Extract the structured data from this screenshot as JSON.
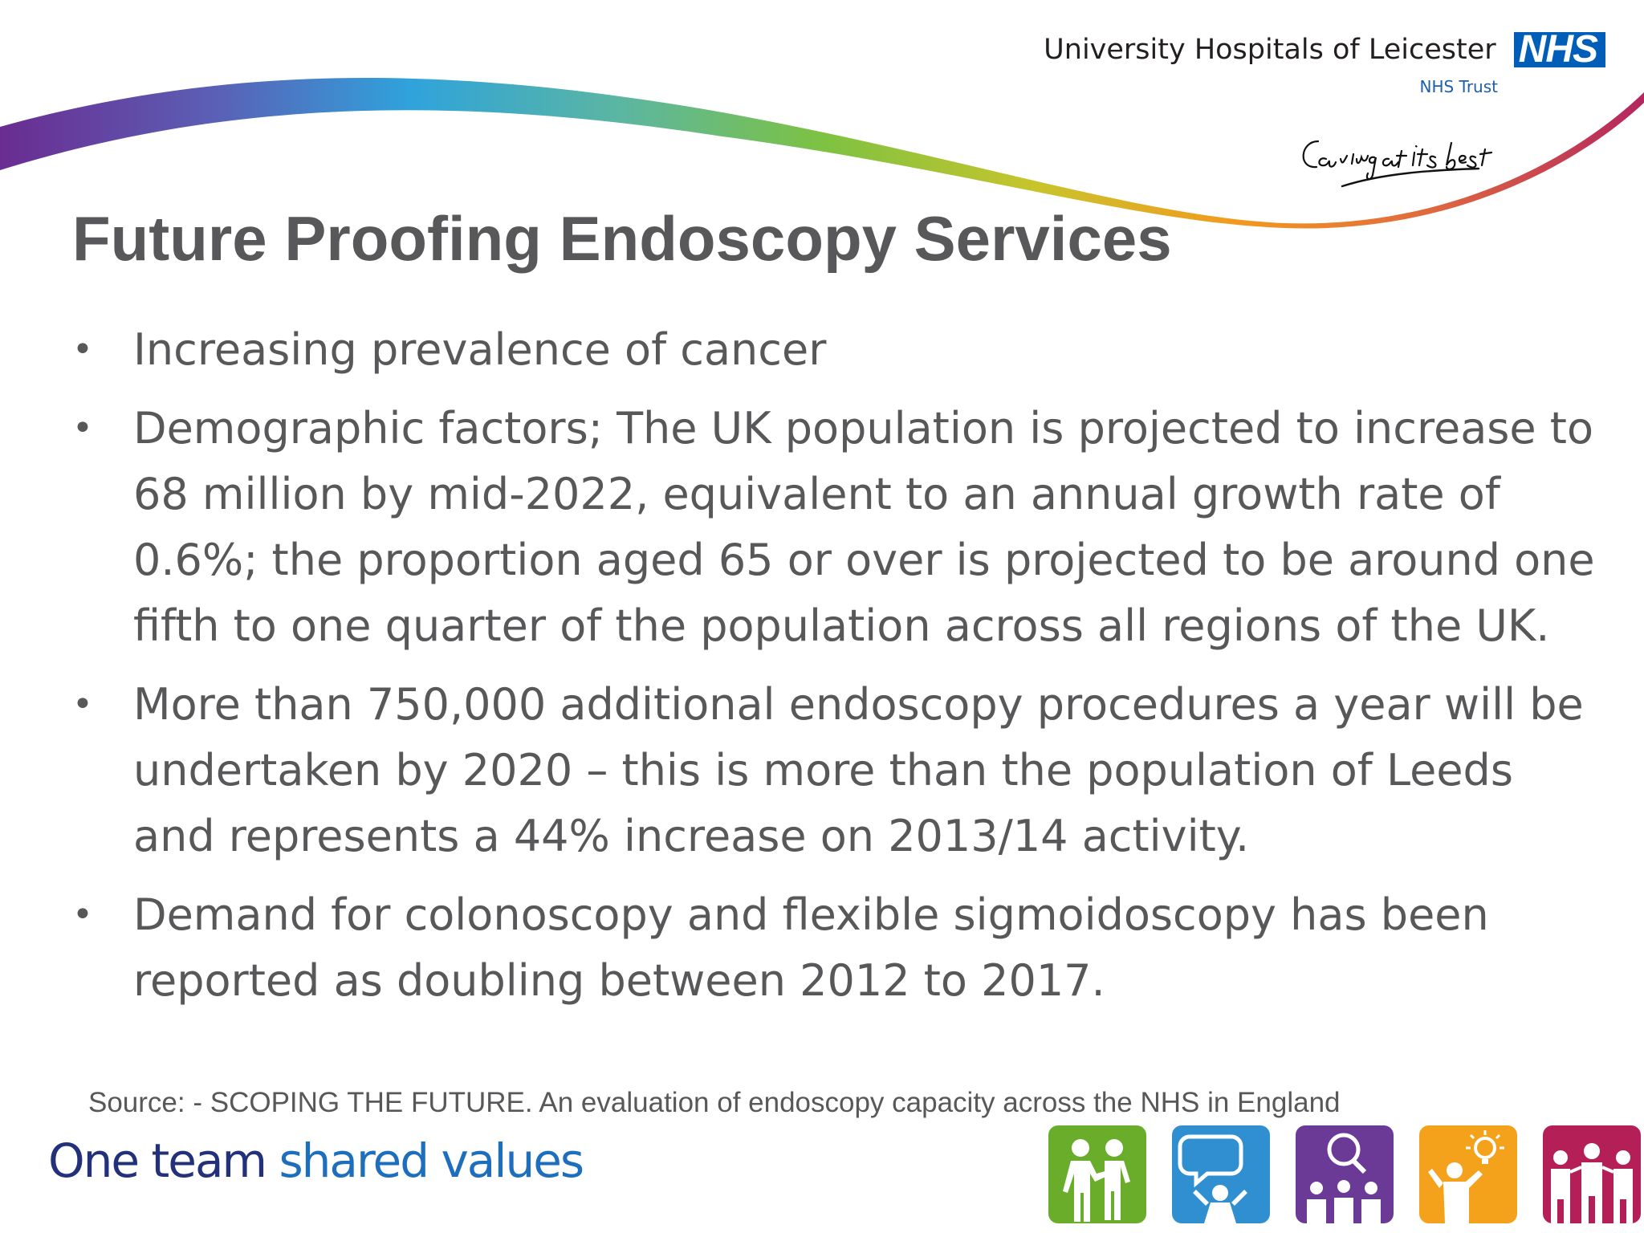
{
  "header": {
    "org_name": "University Hospitals of Leicester",
    "nhs_logo": "NHS",
    "trust": "NHS Trust",
    "slogan": "Caring at its best"
  },
  "slide": {
    "title": "Future Proofing Endoscopy Services",
    "bullets": [
      "Increasing prevalence of cancer",
      "Demographic factors; The UK population is projected to increase to 68 million by mid-2022, equivalent to an annual growth rate of 0.6%; the proportion aged 65 or over is projected to be around one fifth to one quarter of the population across all regions of the UK.",
      "More than 750,000 additional endoscopy procedures a year will be undertaken by 2020 – this is more than the population of Leeds and represents a 44% increase on 2013/14 activity.",
      "Demand for colonoscopy and flexible sigmoidoscopy has been reported as doubling between 2012 to 2017."
    ],
    "source": "Source: - SCOPING THE FUTURE.  An evaluation of endoscopy capacity across the NHS in England"
  },
  "footer": {
    "tagline_part1": "One team",
    "tagline_part2": "shared values",
    "value_icons": [
      {
        "name": "helping-people-icon",
        "color": "#6aad2a"
      },
      {
        "name": "speech-bubble-icon",
        "color": "#2f8fd1"
      },
      {
        "name": "magnifier-group-icon",
        "color": "#6b3a96"
      },
      {
        "name": "lightbulb-person-icon",
        "color": "#f4a21c"
      },
      {
        "name": "family-group-icon",
        "color": "#b51f58"
      }
    ]
  },
  "colors": {
    "text": "#58585a",
    "nhs_blue": "#005eb8",
    "tagline_dark": "#22317a",
    "tagline_light": "#1d6fbe"
  }
}
